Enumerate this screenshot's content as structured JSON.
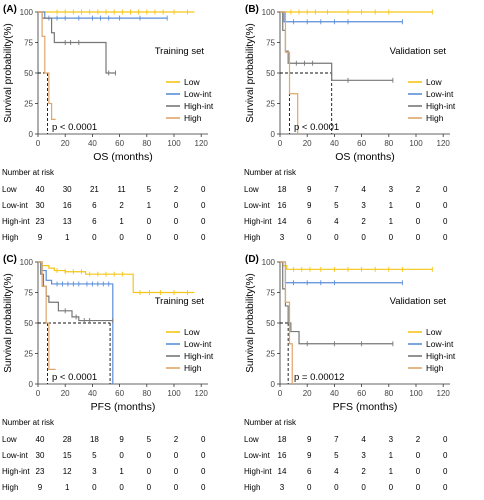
{
  "colors": {
    "Low": "#F5C518",
    "Low-int": "#5B8FD8",
    "High-int": "#777777",
    "High": "#E0A66A"
  },
  "chart_data": [
    {
      "type": "line",
      "panel": "(A)",
      "note": "Training set",
      "xlabel": "OS (months)",
      "ylabel": "Survival probability(%)",
      "xlim": [
        0,
        125
      ],
      "ylim": [
        0,
        100
      ],
      "xticks": [
        0,
        20,
        40,
        60,
        80,
        100,
        120
      ],
      "yticks": [
        0,
        25,
        50,
        75,
        100
      ],
      "pvalue": "p < 0.0001",
      "legend_position": "right",
      "series": [
        {
          "name": "Low",
          "x": [
            0,
            115
          ],
          "y": [
            100,
            100
          ],
          "censor": [
            14,
            20,
            26,
            32,
            38,
            44,
            50,
            56,
            62,
            68,
            74,
            80,
            86,
            92,
            100,
            110
          ]
        },
        {
          "name": "Low-int",
          "x": [
            0,
            5,
            95
          ],
          "y": [
            100,
            95,
            95
          ],
          "censor": [
            8,
            14,
            20,
            30,
            40,
            46,
            52,
            60,
            75,
            95
          ]
        },
        {
          "name": "High-int",
          "x": [
            0,
            3,
            10,
            12,
            15,
            38,
            50,
            57
          ],
          "y": [
            100,
            95,
            83,
            75,
            75,
            75,
            50,
            50
          ],
          "censor": [
            20,
            24,
            30,
            52,
            57
          ]
        },
        {
          "name": "High",
          "x": [
            0,
            3,
            5,
            8,
            10,
            13
          ],
          "y": [
            100,
            80,
            50,
            25,
            12,
            12
          ],
          "censor": []
        }
      ],
      "median_lines": [
        {
          "x": 7,
          "y": 50
        }
      ],
      "risk_table": {
        "title": "Number at risk",
        "rows": [
          {
            "label": "Low",
            "values": [
              "40",
              "30",
              "21",
              "11",
              "5",
              "2",
              "0"
            ]
          },
          {
            "label": "Low-int",
            "values": [
              "30",
              "16",
              "6",
              "2",
              "1",
              "0",
              "0"
            ]
          },
          {
            "label": "High-int",
            "values": [
              "23",
              "13",
              "6",
              "1",
              "0",
              "0",
              "0"
            ]
          },
          {
            "label": "High",
            "values": [
              "9",
              "1",
              "0",
              "0",
              "0",
              "0",
              "0"
            ]
          }
        ]
      }
    },
    {
      "type": "line",
      "panel": "(B)",
      "note": "Validation set",
      "xlabel": "OS (months)",
      "ylabel": "Survival probability(%)",
      "xlim": [
        0,
        125
      ],
      "ylim": [
        0,
        100
      ],
      "xticks": [
        0,
        20,
        40,
        60,
        80,
        100,
        120
      ],
      "yticks": [
        0,
        25,
        50,
        75,
        100
      ],
      "pvalue": "p < 0.0001",
      "legend_position": "right",
      "series": [
        {
          "name": "Low",
          "x": [
            0,
            112
          ],
          "y": [
            100,
            100
          ],
          "censor": [
            8,
            14,
            20,
            26,
            35,
            50,
            60,
            70,
            80,
            112
          ]
        },
        {
          "name": "Low-int",
          "x": [
            0,
            3,
            90
          ],
          "y": [
            100,
            92,
            92
          ],
          "censor": [
            10,
            20,
            30,
            40,
            50,
            90
          ]
        },
        {
          "name": "High-int",
          "x": [
            0,
            2,
            4,
            6,
            38,
            83
          ],
          "y": [
            100,
            85,
            68,
            58,
            44,
            44
          ],
          "censor": [
            12,
            18,
            24,
            50,
            83
          ]
        },
        {
          "name": "High",
          "x": [
            0,
            4,
            7,
            13
          ],
          "y": [
            100,
            67,
            33,
            0
          ],
          "censor": []
        }
      ],
      "median_lines": [
        {
          "x": 7,
          "y": 50
        },
        {
          "x": 38,
          "y": 50
        }
      ],
      "risk_table": {
        "title": "Number at risk",
        "rows": [
          {
            "label": "Low",
            "values": [
              "18",
              "9",
              "7",
              "4",
              "3",
              "2",
              "0"
            ]
          },
          {
            "label": "Low-int",
            "values": [
              "16",
              "9",
              "5",
              "3",
              "1",
              "0",
              "0"
            ]
          },
          {
            "label": "High-int",
            "values": [
              "14",
              "6",
              "4",
              "2",
              "1",
              "0",
              "0"
            ]
          },
          {
            "label": "High",
            "values": [
              "3",
              "0",
              "0",
              "0",
              "0",
              "0",
              "0"
            ]
          }
        ]
      }
    },
    {
      "type": "line",
      "panel": "(C)",
      "note": "Training set",
      "xlabel": "PFS (months)",
      "ylabel": "Survival probability(%)",
      "xlim": [
        0,
        125
      ],
      "ylim": [
        0,
        100
      ],
      "xticks": [
        0,
        20,
        40,
        60,
        80,
        100,
        120
      ],
      "yticks": [
        0,
        25,
        50,
        75,
        100
      ],
      "pvalue": "p < 0.0001",
      "legend_position": "right",
      "series": [
        {
          "name": "Low",
          "x": [
            0,
            3,
            8,
            12,
            20,
            35,
            70,
            115
          ],
          "y": [
            100,
            97,
            95,
            93,
            92,
            90,
            75,
            75
          ],
          "censor": [
            14,
            20,
            26,
            32,
            38,
            44,
            50,
            56,
            62,
            75,
            82,
            90,
            100,
            110
          ]
        },
        {
          "name": "Low-int",
          "x": [
            0,
            3,
            6,
            10,
            52,
            55
          ],
          "y": [
            100,
            93,
            85,
            82,
            82,
            0
          ],
          "censor": [
            14,
            18,
            22,
            26,
            30,
            36,
            40,
            44,
            48,
            52
          ]
        },
        {
          "name": "High-int",
          "x": [
            0,
            2,
            4,
            6,
            8,
            15,
            25,
            30,
            40,
            55
          ],
          "y": [
            100,
            90,
            80,
            72,
            67,
            60,
            55,
            52,
            52,
            52
          ],
          "censor": [
            20,
            28,
            34,
            38,
            55
          ]
        },
        {
          "name": "High",
          "x": [
            0,
            3,
            6,
            8,
            13
          ],
          "y": [
            100,
            80,
            50,
            12,
            12
          ],
          "censor": []
        }
      ],
      "median_lines": [
        {
          "x": 7,
          "y": 50
        },
        {
          "x": 53,
          "y": 50
        }
      ],
      "risk_table": {
        "title": "Number at risk",
        "rows": [
          {
            "label": "Low",
            "values": [
              "40",
              "28",
              "18",
              "9",
              "5",
              "2",
              "0"
            ]
          },
          {
            "label": "Low-int",
            "values": [
              "30",
              "15",
              "5",
              "0",
              "0",
              "0",
              "0"
            ]
          },
          {
            "label": "High-int",
            "values": [
              "23",
              "12",
              "3",
              "1",
              "0",
              "0",
              "0"
            ]
          },
          {
            "label": "High",
            "values": [
              "9",
              "1",
              "0",
              "0",
              "0",
              "0",
              "0"
            ]
          }
        ]
      }
    },
    {
      "type": "line",
      "panel": "(D)",
      "note": "Validation set",
      "xlabel": "PFS (months)",
      "ylabel": "Survival probability(%)",
      "xlim": [
        0,
        125
      ],
      "ylim": [
        0,
        100
      ],
      "xticks": [
        0,
        20,
        40,
        60,
        80,
        100,
        120
      ],
      "yticks": [
        0,
        25,
        50,
        75,
        100
      ],
      "pvalue": "p = 0.00012",
      "legend_position": "right",
      "series": [
        {
          "name": "Low",
          "x": [
            0,
            2,
            5,
            112
          ],
          "y": [
            100,
            97,
            94,
            94
          ],
          "censor": [
            10,
            16,
            22,
            30,
            40,
            50,
            60,
            70,
            80,
            90,
            112
          ]
        },
        {
          "name": "Low-int",
          "x": [
            0,
            4,
            90
          ],
          "y": [
            100,
            83,
            83
          ],
          "censor": [
            10,
            20,
            30,
            40,
            90
          ]
        },
        {
          "name": "High-int",
          "x": [
            0,
            2,
            4,
            6,
            8,
            14,
            83
          ],
          "y": [
            100,
            78,
            64,
            50,
            43,
            33,
            33
          ],
          "censor": [
            20,
            40,
            60,
            83
          ]
        },
        {
          "name": "High",
          "x": [
            0,
            4,
            7,
            9
          ],
          "y": [
            100,
            67,
            33,
            0
          ],
          "censor": []
        }
      ],
      "median_lines": [
        {
          "x": 6,
          "y": 50
        }
      ],
      "risk_table": {
        "title": "Number at risk",
        "rows": [
          {
            "label": "Low",
            "values": [
              "18",
              "9",
              "7",
              "4",
              "3",
              "2",
              "0"
            ]
          },
          {
            "label": "Low-int",
            "values": [
              "16",
              "9",
              "5",
              "3",
              "1",
              "0",
              "0"
            ]
          },
          {
            "label": "High-int",
            "values": [
              "14",
              "6",
              "4",
              "2",
              "1",
              "0",
              "0"
            ]
          },
          {
            "label": "High",
            "values": [
              "3",
              "0",
              "0",
              "0",
              "0",
              "0",
              "0"
            ]
          }
        ]
      }
    }
  ]
}
